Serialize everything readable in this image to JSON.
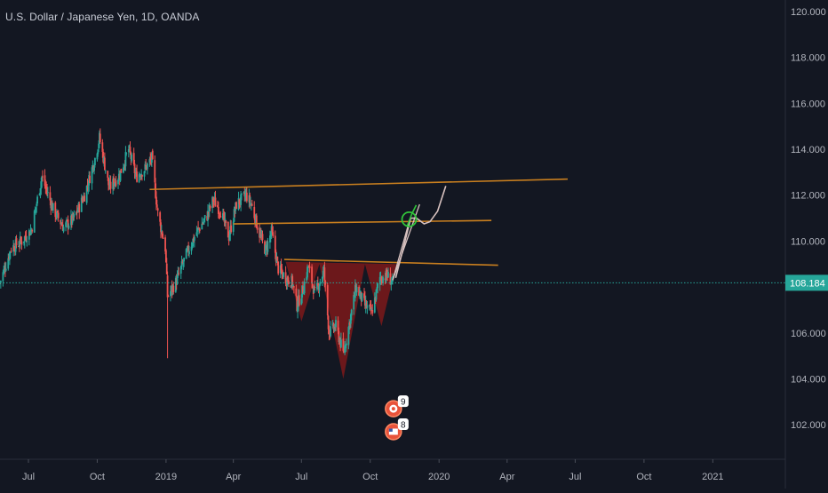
{
  "header": {
    "symbol_title": "U.S. Dollar / Japanese Yen, 1D, OANDA"
  },
  "colors": {
    "background": "#131722",
    "up": "#26a69a",
    "down": "#ef5350",
    "trendline": "#c97f1f",
    "pattern_fill": "#8b1a1a",
    "price_line": "#26a69a",
    "forecast_path": "#d8c2c0",
    "forecast_marker": "#31c43a",
    "axis_text": "#b2b5be"
  },
  "price_badge": {
    "label": "108.184"
  },
  "events": [
    {
      "label": "9",
      "icon": "earnings-icon"
    },
    {
      "label": "8",
      "icon": "flag-icon"
    }
  ],
  "chart_data": {
    "type": "candlestick",
    "title": "U.S. Dollar / Japanese Yen, 1D, OANDA",
    "ylim": [
      100.5,
      120.5
    ],
    "y_ticks": [
      "102.000",
      "104.000",
      "106.000",
      "108.000",
      "110.000",
      "112.000",
      "114.000",
      "116.000",
      "118.000",
      "120.000"
    ],
    "y_tick_values": [
      102,
      104,
      106,
      108,
      110,
      112,
      114,
      116,
      118,
      120
    ],
    "x_ticks": [
      "Jul",
      "Oct",
      "2019",
      "Apr",
      "Jul",
      "Oct",
      "2020",
      "Apr",
      "Jul",
      "Oct",
      "2021"
    ],
    "x_tick_dates": [
      "2018-07-01",
      "2018-10-01",
      "2019-01-01",
      "2019-04-01",
      "2019-07-01",
      "2019-10-01",
      "2020-01-01",
      "2020-04-01",
      "2020-07-01",
      "2020-10-01",
      "2021-01-01"
    ],
    "xlim": [
      "2018-05-24",
      "2021-04-08"
    ],
    "last_price": 108.184,
    "close_path": [
      [
        "2018-05-24",
        108.2
      ],
      [
        "2018-06-08",
        109.7
      ],
      [
        "2018-06-22",
        110.0
      ],
      [
        "2018-07-05",
        110.5
      ],
      [
        "2018-07-19",
        112.8
      ],
      [
        "2018-08-03",
        111.4
      ],
      [
        "2018-08-17",
        110.6
      ],
      [
        "2018-08-31",
        111.0
      ],
      [
        "2018-09-14",
        112.0
      ],
      [
        "2018-09-28",
        113.6
      ],
      [
        "2018-10-04",
        114.5
      ],
      [
        "2018-10-17",
        112.3
      ],
      [
        "2018-10-31",
        112.9
      ],
      [
        "2018-11-12",
        114.0
      ],
      [
        "2018-11-22",
        112.8
      ],
      [
        "2018-12-05",
        113.2
      ],
      [
        "2018-12-13",
        113.6
      ],
      [
        "2018-12-21",
        111.2
      ],
      [
        "2018-12-31",
        109.7
      ],
      [
        "2019-01-03",
        107.6
      ],
      [
        "2019-01-14",
        108.2
      ],
      [
        "2019-01-28",
        109.4
      ],
      [
        "2019-02-11",
        110.4
      ],
      [
        "2019-02-25",
        111.1
      ],
      [
        "2019-03-05",
        111.8
      ],
      [
        "2019-03-15",
        111.3
      ],
      [
        "2019-03-26",
        110.2
      ],
      [
        "2019-04-05",
        111.6
      ],
      [
        "2019-04-18",
        112.0
      ],
      [
        "2019-04-25",
        111.6
      ],
      [
        "2019-05-07",
        110.2
      ],
      [
        "2019-05-14",
        109.6
      ],
      [
        "2019-05-22",
        110.4
      ],
      [
        "2019-05-31",
        108.8
      ],
      [
        "2019-06-10",
        108.4
      ],
      [
        "2019-06-19",
        108.2
      ],
      [
        "2019-06-25",
        107.2
      ],
      [
        "2019-07-03",
        107.9
      ],
      [
        "2019-07-10",
        108.9
      ],
      [
        "2019-07-19",
        107.7
      ],
      [
        "2019-07-31",
        108.7
      ],
      [
        "2019-08-07",
        106.0
      ],
      [
        "2019-08-16",
        106.3
      ],
      [
        "2019-08-26",
        105.1
      ],
      [
        "2019-09-03",
        106.4
      ],
      [
        "2019-09-12",
        108.0
      ],
      [
        "2019-09-24",
        107.2
      ],
      [
        "2019-10-03",
        106.9
      ],
      [
        "2019-10-14",
        108.4
      ],
      [
        "2019-10-24",
        108.5
      ],
      [
        "2019-10-31",
        108.2
      ]
    ],
    "annotations": {
      "trendlines": [
        {
          "from": [
            "2018-12-10",
            112.25
          ],
          "to": [
            "2020-06-21",
            112.7
          ]
        },
        {
          "from": [
            "2019-04-01",
            110.75
          ],
          "to": [
            "2020-03-11",
            110.9
          ]
        },
        {
          "from": [
            "2019-06-08",
            109.2
          ],
          "to": [
            "2020-03-20",
            108.95
          ]
        }
      ],
      "pattern": {
        "name": "inverse head and shoulders",
        "points": [
          [
            "2019-06-10",
            109.1
          ],
          [
            "2019-07-01",
            106.5
          ],
          [
            "2019-07-25",
            109.0
          ],
          [
            "2019-08-26",
            104.0
          ],
          [
            "2019-09-24",
            109.0
          ],
          [
            "2019-10-16",
            106.3
          ],
          [
            "2019-11-05",
            109.0
          ]
        ]
      },
      "forecast_path": [
        [
          "2019-11-04",
          108.4
        ],
        [
          "2019-11-15",
          109.8
        ],
        [
          "2019-11-24",
          111.0
        ],
        [
          "2019-12-02",
          111.0
        ],
        [
          "2019-12-12",
          110.75
        ],
        [
          "2019-12-20",
          110.85
        ],
        [
          "2019-12-30",
          111.3
        ],
        [
          "2020-01-10",
          112.4
        ]
      ],
      "projection_lines": [
        {
          "from": [
            "2019-10-31",
            108.3
          ],
          "to": [
            "2019-11-23",
            110.95
          ]
        },
        {
          "from": [
            "2019-10-31",
            108.3
          ],
          "to": [
            "2019-12-06",
            111.6
          ]
        }
      ],
      "target_marker": [
        "2019-11-22",
        110.95
      ],
      "event_markers": [
        {
          "label": "9",
          "date": "2019-11-01",
          "price": 102.7
        },
        {
          "label": "8",
          "date": "2019-11-01",
          "price": 101.7
        }
      ]
    }
  }
}
